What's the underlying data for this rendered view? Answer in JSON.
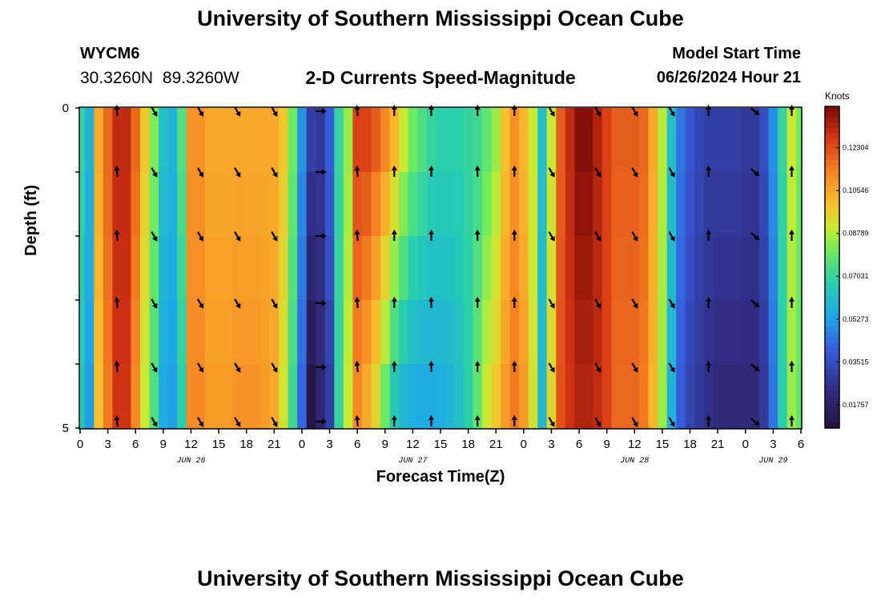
{
  "title": "University of Southern Mississippi Ocean Cube",
  "station": "WYCM6",
  "coordinates": "30.3260N  89.3260W",
  "subtitle": "2-D Currents Speed-Magnitude",
  "model_start_label": "Model Start Time",
  "model_start_value": "06/26/2024 Hour 21",
  "chart_data": {
    "type": "heatmap",
    "title": "2-D Currents Speed-Magnitude",
    "xlabel": "Forecast Time(Z)",
    "ylabel": "Depth (ft)",
    "ylim": [
      0,
      5
    ],
    "y_tick_labels": [
      "0",
      "5"
    ],
    "x_tick_labels": [
      "0",
      "3",
      "6",
      "9",
      "12",
      "15",
      "18",
      "21",
      "0",
      "3",
      "6",
      "9",
      "12",
      "15",
      "18",
      "21",
      "0",
      "3",
      "6",
      "9",
      "12",
      "15",
      "18",
      "21",
      "0",
      "3",
      "6"
    ],
    "date_labels": [
      {
        "label": "JUN 26",
        "hour": 12
      },
      {
        "label": "JUN 27",
        "hour": 36
      },
      {
        "label": "JUN 28",
        "hour": 60
      },
      {
        "label": "JUN 29",
        "hour": 75
      }
    ],
    "x_hours": [
      0,
      1,
      2,
      3,
      4,
      5,
      6,
      7,
      8,
      9,
      10,
      11,
      12,
      13,
      14,
      15,
      16,
      17,
      18,
      19,
      20,
      21,
      22,
      23,
      24,
      25,
      26,
      27,
      28,
      29,
      30,
      31,
      32,
      33,
      34,
      35,
      36,
      37,
      38,
      39,
      40,
      41,
      42,
      43,
      44,
      45,
      46,
      47,
      48,
      49,
      50,
      51,
      52,
      53,
      54,
      55,
      56,
      57,
      58,
      59,
      60,
      61,
      62,
      63,
      64,
      65,
      66,
      67,
      68,
      69,
      70,
      71,
      72,
      73,
      74,
      75,
      76,
      77,
      78
    ],
    "surface_speed_knots": [
      0.07,
      0.058,
      0.105,
      0.118,
      0.13,
      0.13,
      0.118,
      0.098,
      0.082,
      0.062,
      0.058,
      0.075,
      0.11,
      0.11,
      0.105,
      0.105,
      0.105,
      0.105,
      0.105,
      0.105,
      0.105,
      0.105,
      0.098,
      0.08,
      0.05,
      0.03,
      0.028,
      0.04,
      0.07,
      0.085,
      0.125,
      0.125,
      0.12,
      0.112,
      0.102,
      0.09,
      0.08,
      0.075,
      0.07,
      0.068,
      0.068,
      0.068,
      0.07,
      0.072,
      0.078,
      0.085,
      0.1,
      0.11,
      0.102,
      0.09,
      0.062,
      0.09,
      0.12,
      0.13,
      0.138,
      0.138,
      0.132,
      0.125,
      0.12,
      0.12,
      0.12,
      0.118,
      0.105,
      0.088,
      0.062,
      0.045,
      0.038,
      0.033,
      0.03,
      0.03,
      0.03,
      0.03,
      0.028,
      0.028,
      0.035,
      0.05,
      0.07,
      0.09,
      0.08
    ],
    "bottom_speed_knots": [
      0.065,
      0.052,
      0.1,
      0.115,
      0.128,
      0.128,
      0.112,
      0.09,
      0.075,
      0.055,
      0.052,
      0.068,
      0.112,
      0.112,
      0.108,
      0.108,
      0.108,
      0.11,
      0.11,
      0.11,
      0.108,
      0.105,
      0.092,
      0.072,
      0.042,
      0.01,
      0.02,
      0.03,
      0.07,
      0.09,
      0.112,
      0.105,
      0.095,
      0.08,
      0.066,
      0.06,
      0.056,
      0.055,
      0.055,
      0.056,
      0.058,
      0.062,
      0.068,
      0.078,
      0.09,
      0.098,
      0.108,
      0.115,
      0.108,
      0.092,
      0.06,
      0.095,
      0.122,
      0.128,
      0.132,
      0.132,
      0.13,
      0.125,
      0.118,
      0.118,
      0.118,
      0.115,
      0.102,
      0.085,
      0.058,
      0.04,
      0.032,
      0.028,
      0.025,
      0.022,
      0.022,
      0.022,
      0.022,
      0.022,
      0.028,
      0.045,
      0.068,
      0.085,
      0.078
    ],
    "depth_levels_ft": [
      0,
      1,
      2,
      3,
      4,
      5
    ],
    "arrow_hours": [
      4,
      8,
      13,
      17,
      21,
      26,
      30,
      34,
      38,
      43,
      47,
      51,
      56,
      60,
      64,
      68,
      73,
      77
    ],
    "arrow_directions_deg": [
      355,
      150,
      150,
      150,
      150,
      90,
      355,
      0,
      0,
      0,
      0,
      150,
      150,
      150,
      150,
      0,
      130,
      0
    ],
    "colorbar": {
      "units": "Knots",
      "tick_labels": [
        "0.01757",
        "0.03515",
        "0.05273",
        "0.07031",
        "0.08789",
        "0.10546",
        "0.12304"
      ],
      "tick_values": [
        0.01757,
        0.03515,
        0.05273,
        0.07031,
        0.08789,
        0.10546,
        0.12304
      ],
      "range": [
        0.008,
        0.14
      ]
    }
  }
}
